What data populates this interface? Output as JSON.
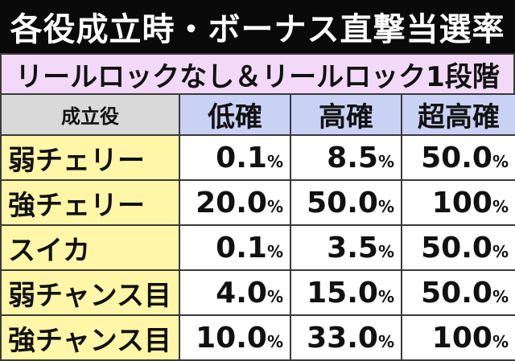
{
  "title": "各役成立時・ボーナス直撃当選率",
  "subtitle": "リールロックなし＆リールロック1段階",
  "table": {
    "headers": [
      "成立役",
      "低確",
      "高確",
      "超高確"
    ],
    "rows": [
      {
        "role": "弱チェリー",
        "values": [
          {
            "num": "0.1",
            "unit": "%"
          },
          {
            "num": "8.5",
            "unit": "%"
          },
          {
            "num": "50.0",
            "unit": "%"
          }
        ]
      },
      {
        "role": "強チェリー",
        "values": [
          {
            "num": "20.0",
            "unit": "%"
          },
          {
            "num": "50.0",
            "unit": "%"
          },
          {
            "num": "100",
            "unit": "%"
          }
        ]
      },
      {
        "role": "スイカ",
        "values": [
          {
            "num": "0.1",
            "unit": "%"
          },
          {
            "num": "3.5",
            "unit": "%"
          },
          {
            "num": "50.0",
            "unit": "%"
          }
        ]
      },
      {
        "role": "弱チャンス目",
        "values": [
          {
            "num": "4.0",
            "unit": "%"
          },
          {
            "num": "15.0",
            "unit": "%"
          },
          {
            "num": "50.0",
            "unit": "%"
          }
        ]
      },
      {
        "role": "強チャンス目",
        "values": [
          {
            "num": "10.0",
            "unit": "%"
          },
          {
            "num": "33.0",
            "unit": "%"
          },
          {
            "num": "100",
            "unit": "%"
          }
        ]
      }
    ]
  },
  "colors": {
    "title_bg": "#0a0a0a",
    "subtitle_bg": "#f2d9f7",
    "header_bg": "#c9d2f5",
    "role_bg": "#fff6a8"
  }
}
